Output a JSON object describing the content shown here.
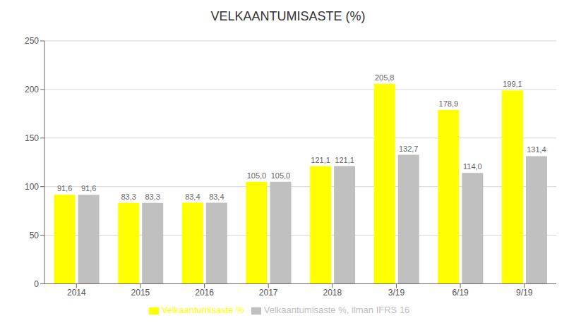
{
  "chart_data": {
    "type": "bar",
    "title": "VELKAANTUMISASTE (%)",
    "categories": [
      "2014",
      "2015",
      "2016",
      "2017",
      "2018",
      "3/19",
      "6/19",
      "9/19"
    ],
    "series": [
      {
        "name": "Velkaantumisaste %",
        "color": "#FFFF00",
        "values": [
          91.6,
          83.3,
          83.4,
          105.0,
          121.1,
          205.8,
          178.9,
          199.1
        ],
        "value_labels": [
          "91,6",
          "83,3",
          "83,4",
          "105,0",
          "121,1",
          "205,8",
          "178,9",
          "199,1"
        ]
      },
      {
        "name": "Velkaantumisaste %, ilman IFRS 16",
        "color": "#C0C0C0",
        "values": [
          91.6,
          83.3,
          83.4,
          105.0,
          121.1,
          132.7,
          114.0,
          131.4
        ],
        "value_labels": [
          "91,6",
          "83,3",
          "83,4",
          "105,0",
          "121,1",
          "132,7",
          "114,0",
          "131,4"
        ]
      }
    ],
    "ylim": [
      0,
      250
    ],
    "yticks": [
      0,
      50,
      100,
      150,
      200,
      250
    ],
    "grid": true,
    "legend": "bottom",
    "data_labels": true
  }
}
